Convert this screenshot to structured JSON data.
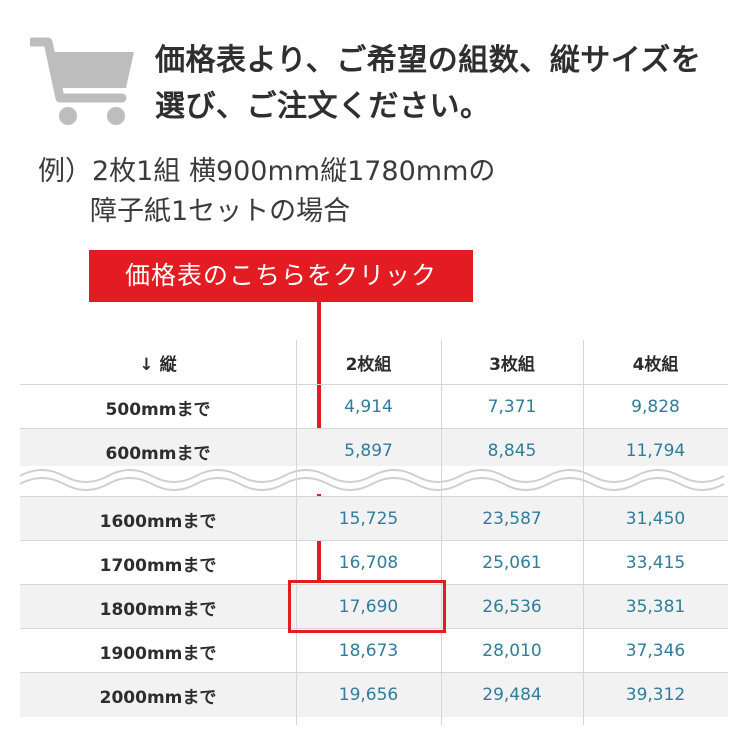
{
  "headline": {
    "line1": "価格表より、ご希望の組数、縦サイズを",
    "line2": "選び、ご注文ください。"
  },
  "example": {
    "line1": "例）2枚1組 横900mm縦1780mmの",
    "line2": "障子紙1セットの場合"
  },
  "callout": {
    "label": "価格表のこちらをクリック"
  },
  "colors": {
    "accent_red": "#e31b23",
    "price_blue": "#2f7d9a",
    "stripe": "#f2f2f2"
  },
  "icons": {
    "cart": "shopping-cart-icon"
  },
  "table": {
    "headers": [
      "縦",
      "2枚組",
      "3枚組",
      "4枚組"
    ],
    "header_arrow": "↓",
    "rows_top": [
      [
        "500mmまで",
        "4,914",
        "7,371",
        "9,828"
      ],
      [
        "600mmまで",
        "5,897",
        "8,845",
        "11,794"
      ]
    ],
    "rows_bottom": [
      [
        "1600mmまで",
        "15,725",
        "23,587",
        "31,450"
      ],
      [
        "1700mmまで",
        "16,708",
        "25,061",
        "33,415"
      ],
      [
        "1800mmまで",
        "17,690",
        "26,536",
        "35,381"
      ],
      [
        "1900mmまで",
        "18,673",
        "28,010",
        "37,346"
      ],
      [
        "2000mmまで",
        "19,656",
        "29,484",
        "39,312"
      ]
    ]
  }
}
